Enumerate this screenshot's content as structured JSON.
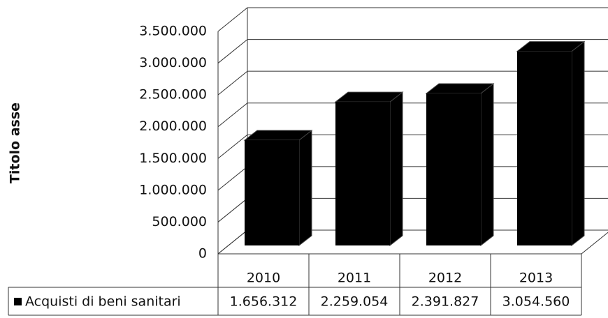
{
  "chart_data": {
    "type": "bar",
    "y_axis_label": "Titolo asse",
    "categories": [
      "2010",
      "2011",
      "2012",
      "2013"
    ],
    "series": [
      {
        "name": "Acquisti di beni sanitari",
        "color": "#000000",
        "values": [
          1656312,
          2259054,
          2391827,
          3054560
        ],
        "value_labels": [
          "1.656.312",
          "2.259.054",
          "2.391.827",
          "3.054.560"
        ]
      }
    ],
    "ylim": [
      0,
      3500000
    ],
    "yticks": [
      0,
      {
        "value": 500000,
        "label": "500.000"
      },
      {
        "value": 1000000,
        "label": "1.000.000"
      },
      {
        "value": 1500000,
        "label": "1.500.000"
      },
      {
        "value": 2000000,
        "label": "2.000.000"
      },
      {
        "value": 2500000,
        "label": "2.500.000"
      },
      {
        "value": 3000000,
        "label": "3.000.000"
      },
      {
        "value": 3500000,
        "label": "3.500.000"
      }
    ],
    "grid": true,
    "legend": "bottom"
  }
}
